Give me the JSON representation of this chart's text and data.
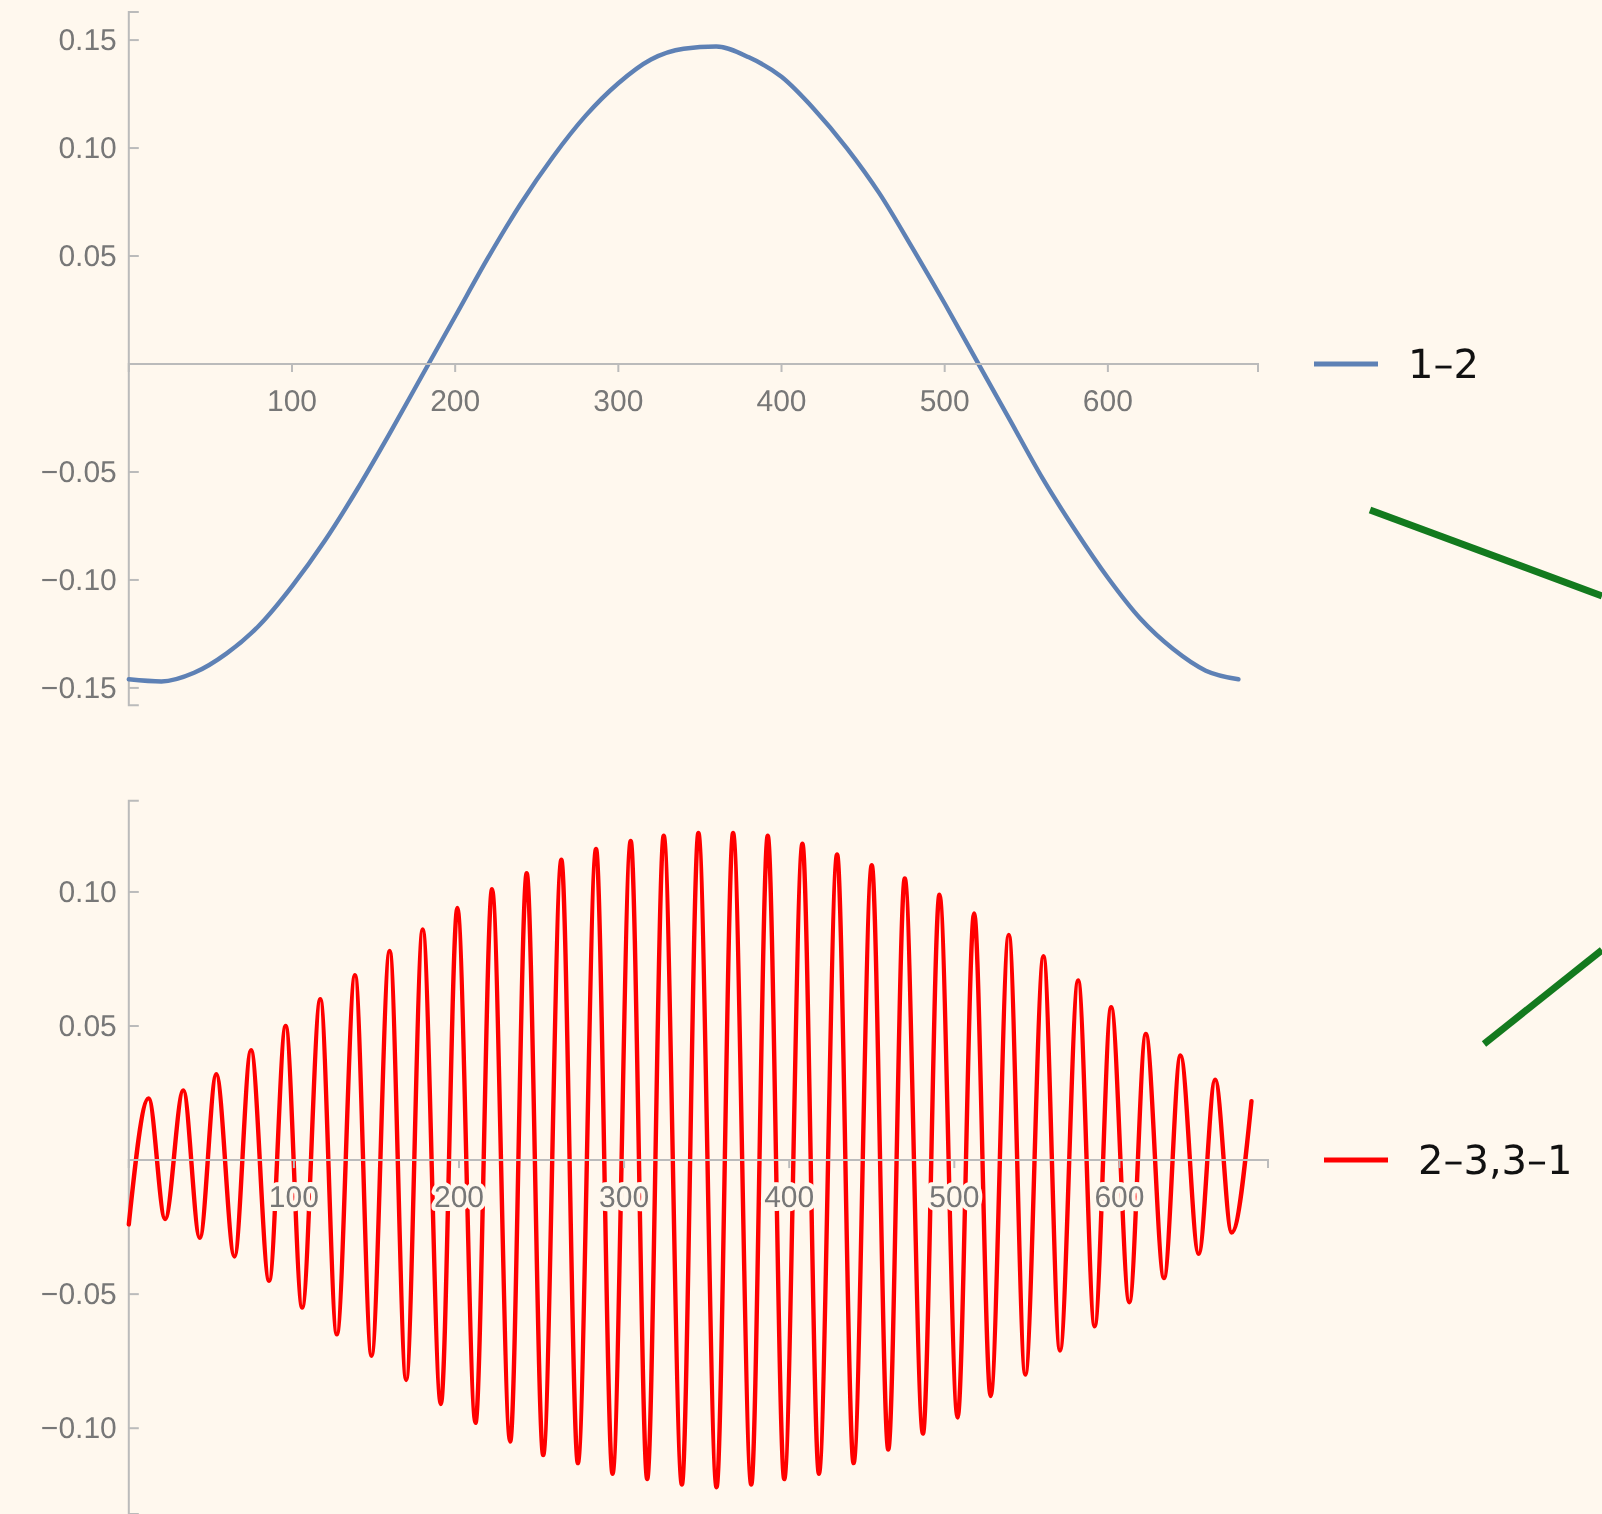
{
  "chart_data": [
    {
      "type": "line",
      "xlim": [
        0,
        692
      ],
      "ylim": [
        -0.158,
        0.163
      ],
      "xticks": [
        100,
        200,
        300,
        400,
        500,
        600
      ],
      "yticks": [
        {
          "value": -0.15,
          "label": "−0.15"
        },
        {
          "value": -0.1,
          "label": "−0.10"
        },
        {
          "value": -0.05,
          "label": "−0.05"
        },
        {
          "value": 0.05,
          "label": "0.05"
        },
        {
          "value": 0.1,
          "label": "0.10"
        },
        {
          "value": 0.15,
          "label": "0.15"
        }
      ],
      "grid": false,
      "legend": "right",
      "series": [
        {
          "name": "1–2",
          "color": "#5e81b5",
          "x": [
            0,
            20,
            40,
            60,
            80,
            100,
            120,
            140,
            160,
            180,
            200,
            220,
            240,
            260,
            280,
            300,
            320,
            340,
            360,
            380,
            400,
            420,
            440,
            460,
            480,
            500,
            520,
            540,
            560,
            580,
            600,
            620,
            640,
            660,
            680
          ],
          "values": [
            -0.146,
            -0.147,
            -0.143,
            -0.134,
            -0.121,
            -0.103,
            -0.082,
            -0.058,
            -0.032,
            -0.005,
            0.022,
            0.049,
            0.074,
            0.096,
            0.115,
            0.13,
            0.141,
            0.146,
            0.147,
            0.142,
            0.133,
            0.118,
            0.1,
            0.079,
            0.054,
            0.028,
            0.001,
            -0.026,
            -0.053,
            -0.077,
            -0.099,
            -0.118,
            -0.132,
            -0.142,
            -0.146
          ]
        }
      ]
    },
    {
      "type": "line",
      "xlim": [
        0,
        690
      ],
      "ylim": [
        -0.132,
        0.134
      ],
      "xticks": [
        100,
        200,
        300,
        400,
        500,
        600
      ],
      "yticks": [
        {
          "value": -0.1,
          "label": "−0.10"
        },
        {
          "value": -0.05,
          "label": "−0.05"
        },
        {
          "value": 0.05,
          "label": "0.05"
        },
        {
          "value": 0.1,
          "label": "0.10"
        }
      ],
      "grid": false,
      "legend": "right",
      "series": [
        {
          "name": "2–3,3–1",
          "color": "#ff0000",
          "x": [
            0,
            12,
            22,
            33,
            43,
            53,
            64,
            74,
            85,
            95,
            105,
            116,
            126,
            137,
            147,
            158,
            168,
            178,
            189,
            199,
            210,
            220,
            231,
            241,
            251,
            262,
            272,
            283,
            293,
            304,
            314,
            324,
            335,
            345,
            356,
            366,
            377,
            387,
            397,
            408,
            418,
            429,
            439,
            450,
            460,
            470,
            481,
            491,
            502,
            512,
            522,
            533,
            543,
            554,
            564,
            575,
            585,
            595,
            606,
            616,
            627,
            637,
            648,
            658,
            668,
            680
          ],
          "values": [
            -0.024,
            0.023,
            -0.022,
            0.026,
            -0.029,
            0.032,
            -0.036,
            0.041,
            -0.045,
            0.05,
            -0.055,
            0.06,
            -0.065,
            0.069,
            -0.073,
            0.078,
            -0.082,
            0.086,
            -0.091,
            0.094,
            -0.098,
            0.101,
            -0.105,
            0.107,
            -0.11,
            0.112,
            -0.113,
            0.116,
            -0.117,
            0.119,
            -0.119,
            0.121,
            -0.121,
            0.122,
            -0.122,
            0.122,
            -0.121,
            0.121,
            -0.119,
            0.118,
            -0.117,
            0.114,
            -0.113,
            0.11,
            -0.108,
            0.105,
            -0.102,
            0.099,
            -0.096,
            0.092,
            -0.088,
            0.084,
            -0.08,
            0.076,
            -0.071,
            0.067,
            -0.062,
            0.057,
            -0.053,
            0.047,
            -0.044,
            0.039,
            -0.035,
            0.03,
            -0.027,
            0.022
          ]
        }
      ]
    }
  ]
}
